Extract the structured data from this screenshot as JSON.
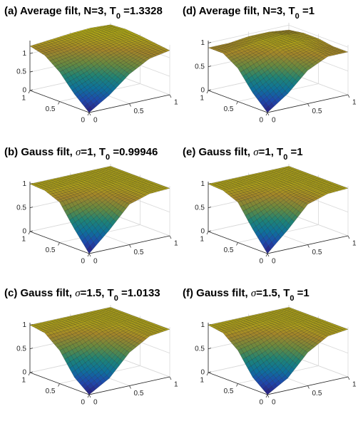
{
  "chart_data": [
    {
      "type": "surface",
      "title_parts": [
        {
          "text": "(a) Average filt, N=3, T"
        },
        {
          "text": "0",
          "style": "sub"
        },
        {
          "text": " =1.3328"
        }
      ],
      "x": [
        0,
        0.25,
        0.5,
        0.75,
        1
      ],
      "y": [
        0,
        0.25,
        0.5,
        0.75,
        1
      ],
      "z": [
        [
          0,
          0.35,
          0.8,
          1.1,
          1.2
        ],
        [
          0.35,
          0.6,
          0.95,
          1.15,
          1.25
        ],
        [
          0.8,
          0.95,
          1.15,
          1.25,
          1.3
        ],
        [
          1.1,
          1.15,
          1.25,
          1.3,
          1.33
        ],
        [
          1.2,
          1.25,
          1.3,
          1.33,
          1.3
        ]
      ],
      "xlim": [
        0,
        1
      ],
      "ylim": [
        0,
        1
      ],
      "zlim": [
        0,
        1.35
      ],
      "xticks": [
        0,
        0.5,
        1
      ],
      "yticks": [
        0,
        0.5,
        1
      ],
      "zticks": [
        0,
        0.5,
        1
      ],
      "grid": true
    },
    {
      "type": "surface",
      "title_parts": [
        {
          "text": "(d) Average filt, N=3, T"
        },
        {
          "text": "0",
          "style": "sub"
        },
        {
          "text": " =1"
        }
      ],
      "x": [
        0,
        0.25,
        0.5,
        0.75,
        1
      ],
      "y": [
        0,
        0.25,
        0.5,
        0.75,
        1
      ],
      "z": [
        [
          0,
          0.3,
          0.7,
          0.9,
          0.9
        ],
        [
          0.3,
          0.55,
          0.85,
          0.95,
          0.9
        ],
        [
          0.7,
          0.85,
          0.98,
          1,
          0.95
        ],
        [
          0.9,
          0.95,
          1,
          1,
          0.95
        ],
        [
          0.9,
          0.9,
          0.95,
          0.95,
          0.9
        ]
      ],
      "xlim": [
        0,
        1
      ],
      "ylim": [
        0,
        1
      ],
      "zlim": [
        0,
        1.05
      ],
      "xticks": [
        0,
        0.5,
        1
      ],
      "yticks": [
        0,
        0.5,
        1
      ],
      "zticks": [
        0,
        0.5,
        1
      ],
      "grid": true
    },
    {
      "type": "surface",
      "title_parts": [
        {
          "text": "(b) Gauss filt, "
        },
        {
          "text": "σ",
          "style": "italic"
        },
        {
          "text": "=1, T"
        },
        {
          "text": "0",
          "style": "sub"
        },
        {
          "text": " =0.99946"
        }
      ],
      "x": [
        0,
        0.25,
        0.5,
        0.75,
        1
      ],
      "y": [
        0,
        0.25,
        0.5,
        0.75,
        1
      ],
      "z": [
        [
          0,
          0.4,
          0.85,
          0.98,
          1
        ],
        [
          0.4,
          0.65,
          0.9,
          0.99,
          1
        ],
        [
          0.85,
          0.9,
          0.98,
          1,
          1
        ],
        [
          0.98,
          0.99,
          1,
          1,
          1
        ],
        [
          1,
          1,
          1,
          1,
          1
        ]
      ],
      "xlim": [
        0,
        1
      ],
      "ylim": [
        0,
        1
      ],
      "zlim": [
        0,
        1.05
      ],
      "xticks": [
        0,
        0.5,
        1
      ],
      "yticks": [
        0,
        0.5,
        1
      ],
      "zticks": [
        0,
        0.5,
        1
      ],
      "grid": true
    },
    {
      "type": "surface",
      "title_parts": [
        {
          "text": "(e) Gauss filt, "
        },
        {
          "text": "σ",
          "style": "italic"
        },
        {
          "text": "=1, T"
        },
        {
          "text": "0",
          "style": "sub"
        },
        {
          "text": " =1"
        }
      ],
      "x": [
        0,
        0.25,
        0.5,
        0.75,
        1
      ],
      "y": [
        0,
        0.25,
        0.5,
        0.75,
        1
      ],
      "z": [
        [
          0,
          0.4,
          0.85,
          0.98,
          1
        ],
        [
          0.4,
          0.65,
          0.9,
          0.99,
          1
        ],
        [
          0.85,
          0.9,
          0.98,
          1,
          1
        ],
        [
          0.98,
          0.99,
          1,
          1,
          1
        ],
        [
          1,
          1,
          1,
          1,
          1
        ]
      ],
      "xlim": [
        0,
        1
      ],
      "ylim": [
        0,
        1
      ],
      "zlim": [
        0,
        1.05
      ],
      "xticks": [
        0,
        0.5,
        1
      ],
      "yticks": [
        0,
        0.5,
        1
      ],
      "zticks": [
        0,
        0.5,
        1
      ],
      "grid": true
    },
    {
      "type": "surface",
      "title_parts": [
        {
          "text": "(c) Gauss filt, "
        },
        {
          "text": "σ",
          "style": "italic"
        },
        {
          "text": "=1.5, T"
        },
        {
          "text": "0",
          "style": "sub"
        },
        {
          "text": " =1.0133"
        }
      ],
      "x": [
        0,
        0.25,
        0.5,
        0.75,
        1
      ],
      "y": [
        0,
        0.25,
        0.5,
        0.75,
        1
      ],
      "z": [
        [
          0,
          0.25,
          0.7,
          0.95,
          1
        ],
        [
          0.25,
          0.5,
          0.8,
          0.97,
          1
        ],
        [
          0.7,
          0.8,
          0.95,
          1,
          1
        ],
        [
          0.95,
          0.97,
          1,
          1,
          1
        ],
        [
          1,
          1,
          1,
          1,
          1
        ]
      ],
      "xlim": [
        0,
        1
      ],
      "ylim": [
        0,
        1
      ],
      "zlim": [
        0,
        1.05
      ],
      "xticks": [
        0,
        0.5,
        1
      ],
      "yticks": [
        0,
        0.5,
        1
      ],
      "zticks": [
        0,
        0.5,
        1
      ],
      "grid": true
    },
    {
      "type": "surface",
      "title_parts": [
        {
          "text": "(f) Gauss filt, "
        },
        {
          "text": "σ",
          "style": "italic"
        },
        {
          "text": "=1.5, T"
        },
        {
          "text": "0",
          "style": "sub"
        },
        {
          "text": " =1"
        }
      ],
      "x": [
        0,
        0.25,
        0.5,
        0.75,
        1
      ],
      "y": [
        0,
        0.25,
        0.5,
        0.75,
        1
      ],
      "z": [
        [
          0,
          0.25,
          0.7,
          0.95,
          1
        ],
        [
          0.25,
          0.5,
          0.8,
          0.97,
          1
        ],
        [
          0.7,
          0.8,
          0.95,
          1,
          1
        ],
        [
          0.95,
          0.97,
          1,
          1,
          1
        ],
        [
          1,
          1,
          1,
          1,
          1
        ]
      ],
      "xlim": [
        0,
        1
      ],
      "ylim": [
        0,
        1
      ],
      "zlim": [
        0,
        1.05
      ],
      "xticks": [
        0,
        0.5,
        1
      ],
      "yticks": [
        0,
        0.5,
        1
      ],
      "zticks": [
        0,
        0.5,
        1
      ],
      "grid": true
    }
  ],
  "colormap": [
    "#3e26a8",
    "#2b64f0",
    "#139dd8",
    "#2ab6a4",
    "#8cbe5a",
    "#e3b93a",
    "#f9fb15"
  ],
  "edgecolor": "#000000"
}
